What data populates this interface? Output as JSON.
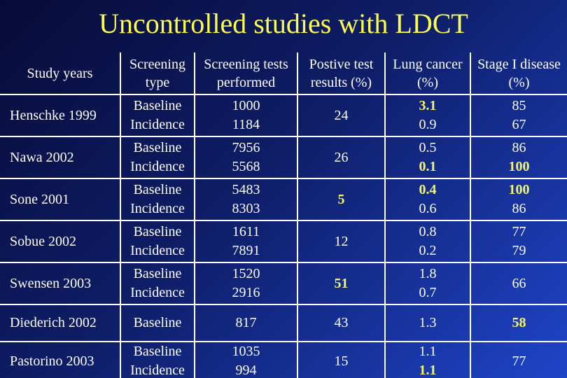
{
  "slide": {
    "title": "Uncontrolled studies with LDCT",
    "colors": {
      "background_top": "#070b38",
      "background_mid": "#0e1d66",
      "background_bottom": "#1e44c8",
      "title": "#fdfd4e",
      "text": "#ffffff",
      "highlight": "#f3f56e",
      "border": "#ffffff"
    },
    "table": {
      "headers": [
        "Study years",
        "Screening type",
        "Screening tests performed",
        "Postive test results (%)",
        "Lung cancer (%)",
        "Stage I disease (%)"
      ],
      "rows": [
        {
          "cells": [
            [
              {
                "t": "Henschke 1999"
              }
            ],
            [
              {
                "t": "Baseline"
              },
              {
                "t": "Incidence"
              }
            ],
            [
              {
                "t": "1000"
              },
              {
                "t": "1184"
              }
            ],
            [
              {
                "t": "24"
              }
            ],
            [
              {
                "t": "3.1",
                "hl": true
              },
              {
                "t": "0.9"
              }
            ],
            [
              {
                "t": "85"
              },
              {
                "t": "67"
              }
            ]
          ]
        },
        {
          "cells": [
            [
              {
                "t": "Nawa 2002"
              }
            ],
            [
              {
                "t": "Baseline"
              },
              {
                "t": "Incidence"
              }
            ],
            [
              {
                "t": "7956"
              },
              {
                "t": "5568"
              }
            ],
            [
              {
                "t": "26"
              }
            ],
            [
              {
                "t": "0.5"
              },
              {
                "t": "0.1",
                "hl": true
              }
            ],
            [
              {
                "t": "86"
              },
              {
                "t": "100",
                "hl": true
              }
            ]
          ]
        },
        {
          "cells": [
            [
              {
                "t": "Sone 2001"
              }
            ],
            [
              {
                "t": "Baseline"
              },
              {
                "t": "Incidence"
              }
            ],
            [
              {
                "t": "5483"
              },
              {
                "t": "8303"
              }
            ],
            [
              {
                "t": "5",
                "hl": true
              }
            ],
            [
              {
                "t": "0.4",
                "hl": true
              },
              {
                "t": "0.6"
              }
            ],
            [
              {
                "t": "100",
                "hl": true
              },
              {
                "t": "86"
              }
            ]
          ]
        },
        {
          "cells": [
            [
              {
                "t": "Sobue 2002"
              }
            ],
            [
              {
                "t": "Baseline"
              },
              {
                "t": "Incidence"
              }
            ],
            [
              {
                "t": "1611"
              },
              {
                "t": "7891"
              }
            ],
            [
              {
                "t": "12"
              }
            ],
            [
              {
                "t": "0.8"
              },
              {
                "t": "0.2"
              }
            ],
            [
              {
                "t": "77"
              },
              {
                "t": "79"
              }
            ]
          ]
        },
        {
          "cells": [
            [
              {
                "t": "Swensen 2003"
              }
            ],
            [
              {
                "t": "Baseline"
              },
              {
                "t": "Incidence"
              }
            ],
            [
              {
                "t": "1520"
              },
              {
                "t": "2916"
              }
            ],
            [
              {
                "t": "51",
                "hl": true
              }
            ],
            [
              {
                "t": "1.8"
              },
              {
                "t": "0.7"
              }
            ],
            [
              {
                "t": "66"
              }
            ]
          ]
        },
        {
          "cells": [
            [
              {
                "t": "Diederich 2002"
              }
            ],
            [
              {
                "t": "Baseline"
              }
            ],
            [
              {
                "t": "817"
              }
            ],
            [
              {
                "t": "43"
              }
            ],
            [
              {
                "t": "1.3"
              }
            ],
            [
              {
                "t": "58",
                "hl": true
              }
            ]
          ]
        },
        {
          "cells": [
            [
              {
                "t": "Pastorino 2003"
              }
            ],
            [
              {
                "t": "Baseline"
              },
              {
                "t": "Incidence"
              }
            ],
            [
              {
                "t": "1035"
              },
              {
                "t": "994"
              }
            ],
            [
              {
                "t": "15"
              }
            ],
            [
              {
                "t": "1.1"
              },
              {
                "t": "1.1",
                "hl": true
              }
            ],
            [
              {
                "t": "77"
              }
            ]
          ]
        }
      ]
    }
  }
}
